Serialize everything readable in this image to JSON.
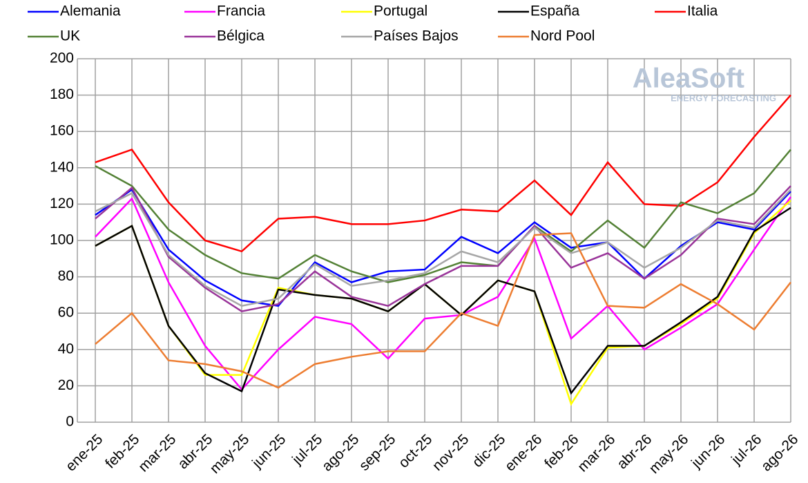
{
  "chart_data": {
    "type": "line",
    "watermark": {
      "title": "AleaSoft",
      "subtitle": "ENERGY FORECASTING"
    },
    "categories": [
      "ene-25",
      "feb-25",
      "mar-25",
      "abr-25",
      "may-25",
      "jun-25",
      "jul-25",
      "ago-25",
      "sep-25",
      "oct-25",
      "nov-25",
      "dic-25",
      "ene-26",
      "feb-26",
      "mar-26",
      "abr-26",
      "may-26",
      "jun-26",
      "jul-26",
      "ago-26"
    ],
    "ylim": [
      0,
      200
    ],
    "yticks": [
      0,
      20,
      40,
      60,
      80,
      100,
      120,
      140,
      160,
      180,
      200
    ],
    "grid": true,
    "series": [
      {
        "name": "Alemania",
        "color": "#0000ff",
        "values": [
          114,
          128,
          95,
          78,
          67,
          64,
          88,
          77,
          83,
          84,
          102,
          93,
          110,
          96,
          99,
          79,
          97,
          110,
          106,
          127
        ]
      },
      {
        "name": "Francia",
        "color": "#ff00ff",
        "values": [
          102,
          123,
          77,
          42,
          18,
          40,
          58,
          54,
          35,
          57,
          59,
          69,
          101,
          46,
          64,
          40,
          52,
          65,
          95,
          124
        ]
      },
      {
        "name": "Portugal",
        "color": "#ffff00",
        "values": [
          97,
          108,
          53,
          26,
          26,
          74,
          70,
          68,
          61,
          76,
          59,
          78,
          72,
          10,
          41,
          42,
          54,
          68,
          104,
          122
        ]
      },
      {
        "name": "España",
        "color": "#000000",
        "values": [
          97,
          108,
          53,
          27,
          17,
          73,
          70,
          68,
          61,
          76,
          59,
          78,
          72,
          16,
          42,
          42,
          55,
          69,
          105,
          118
        ]
      },
      {
        "name": "Italia",
        "color": "#ff0000",
        "values": [
          143,
          150,
          121,
          100,
          94,
          112,
          113,
          109,
          109,
          111,
          117,
          116,
          133,
          114,
          143,
          120,
          119,
          132,
          157,
          180
        ]
      },
      {
        "name": "UK",
        "color": "#538135",
        "values": [
          141,
          130,
          106,
          92,
          82,
          79,
          92,
          83,
          77,
          81,
          88,
          86,
          108,
          94,
          111,
          96,
          121,
          115,
          126,
          150
        ]
      },
      {
        "name": "Bélgica",
        "color": "#993399",
        "values": [
          112,
          129,
          91,
          74,
          61,
          65,
          83,
          69,
          64,
          76,
          86,
          86,
          108,
          85,
          93,
          79,
          92,
          112,
          109,
          130
        ]
      },
      {
        "name": "Países Bajos",
        "color": "#a6a6a6",
        "values": [
          116,
          126,
          92,
          75,
          64,
          68,
          87,
          75,
          78,
          82,
          94,
          88,
          107,
          93,
          99,
          85,
          96,
          111,
          107,
          128
        ]
      },
      {
        "name": "Nord Pool",
        "color": "#ed7d31",
        "values": [
          43,
          60,
          34,
          32,
          28,
          19,
          32,
          36,
          39,
          39,
          60,
          53,
          103,
          104,
          64,
          63,
          76,
          65,
          51,
          77
        ]
      }
    ]
  }
}
